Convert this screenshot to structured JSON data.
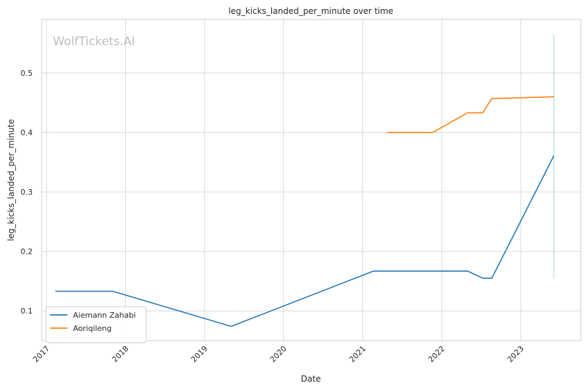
{
  "chart_data": {
    "type": "line",
    "title": "leg_kicks_landed_per_minute over time",
    "xlabel": "Date",
    "ylabel": "leg_kicks_landed_per_minute",
    "watermark": "WolfTickets.AI",
    "x_ticks": [
      "2017",
      "2018",
      "2019",
      "2020",
      "2021",
      "2022",
      "2023"
    ],
    "y_ticks": [
      0.1,
      0.2,
      0.3,
      0.4,
      0.5
    ],
    "xlim": [
      "2016-12-10",
      "2023-10-05"
    ],
    "ylim": [
      0.05,
      0.59
    ],
    "grid": true,
    "legend_position": "lower-left",
    "series": [
      {
        "name": "Aiemann Zahabi",
        "color": "#1f77b4",
        "points": [
          {
            "x": "2017-02-11",
            "y": 0.133
          },
          {
            "x": "2017-11-04",
            "y": 0.133
          },
          {
            "x": "2019-05-04",
            "y": 0.074
          },
          {
            "x": "2021-02-20",
            "y": 0.167
          },
          {
            "x": "2022-04-30",
            "y": 0.167
          },
          {
            "x": "2022-07-09",
            "y": 0.155
          },
          {
            "x": "2022-08-20",
            "y": 0.155
          },
          {
            "x": "2023-06-03",
            "y": 0.361
          }
        ]
      },
      {
        "name": "Aoriqileng",
        "color": "#ff7f0e",
        "points": [
          {
            "x": "2021-04-24",
            "y": 0.4
          },
          {
            "x": "2021-11-20",
            "y": 0.4
          },
          {
            "x": "2022-04-30",
            "y": 0.433
          },
          {
            "x": "2022-07-09",
            "y": 0.433
          },
          {
            "x": "2022-08-20",
            "y": 0.457
          },
          {
            "x": "2023-06-03",
            "y": 0.46
          }
        ]
      }
    ],
    "vertical_marker": {
      "x": "2023-06-03",
      "y_range": [
        0.155,
        0.565
      ],
      "color": "#a8d8c8"
    }
  }
}
